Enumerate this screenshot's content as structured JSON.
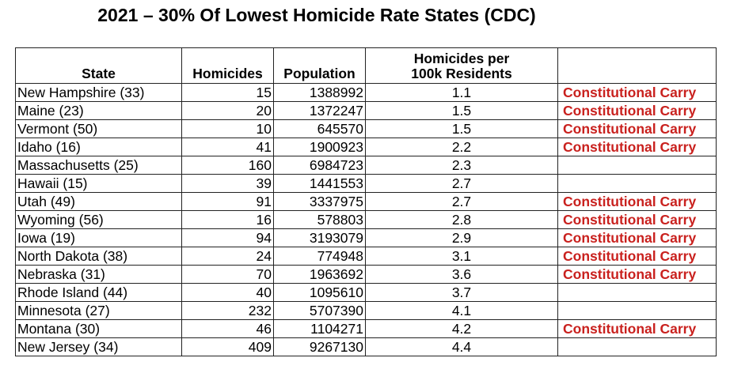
{
  "title": "2021 – 30% Of Lowest Homicide Rate States (CDC)",
  "headers": [
    "State",
    "Homicides",
    "Population",
    "Homicides per 100k Residents",
    ""
  ],
  "carry_color": "#c9211e",
  "rows": [
    {
      "state": "New Hampshire (33)",
      "homicides": "15",
      "population": "1388992",
      "rate": "1.1",
      "carry": "Constitutional Carry"
    },
    {
      "state": "Maine (23)",
      "homicides": "20",
      "population": "1372247",
      "rate": "1.5",
      "carry": "Constitutional Carry"
    },
    {
      "state": "Vermont (50)",
      "homicides": "10",
      "population": "645570",
      "rate": "1.5",
      "carry": "Constitutional Carry"
    },
    {
      "state": "Idaho (16)",
      "homicides": "41",
      "population": "1900923",
      "rate": "2.2",
      "carry": "Constitutional Carry"
    },
    {
      "state": "Massachusetts (25)",
      "homicides": "160",
      "population": "6984723",
      "rate": "2.3",
      "carry": ""
    },
    {
      "state": "Hawaii (15)",
      "homicides": "39",
      "population": "1441553",
      "rate": "2.7",
      "carry": ""
    },
    {
      "state": "Utah (49)",
      "homicides": "91",
      "population": "3337975",
      "rate": "2.7",
      "carry": "Constitutional Carry"
    },
    {
      "state": "Wyoming (56)",
      "homicides": "16",
      "population": "578803",
      "rate": "2.8",
      "carry": "Constitutional Carry"
    },
    {
      "state": "Iowa (19)",
      "homicides": "94",
      "population": "3193079",
      "rate": "2.9",
      "carry": "Constitutional Carry"
    },
    {
      "state": "North Dakota (38)",
      "homicides": "24",
      "population": "774948",
      "rate": "3.1",
      "carry": "Constitutional Carry"
    },
    {
      "state": "Nebraska (31)",
      "homicides": "70",
      "population": "1963692",
      "rate": "3.6",
      "carry": "Constitutional Carry"
    },
    {
      "state": "Rhode Island (44)",
      "homicides": "40",
      "population": "1095610",
      "rate": "3.7",
      "carry": ""
    },
    {
      "state": "Minnesota (27)",
      "homicides": "232",
      "population": "5707390",
      "rate": "4.1",
      "carry": ""
    },
    {
      "state": "Montana (30)",
      "homicides": "46",
      "population": "1104271",
      "rate": "4.2",
      "carry": "Constitutional Carry"
    },
    {
      "state": "New Jersey (34)",
      "homicides": "409",
      "population": "9267130",
      "rate": "4.4",
      "carry": ""
    }
  ]
}
